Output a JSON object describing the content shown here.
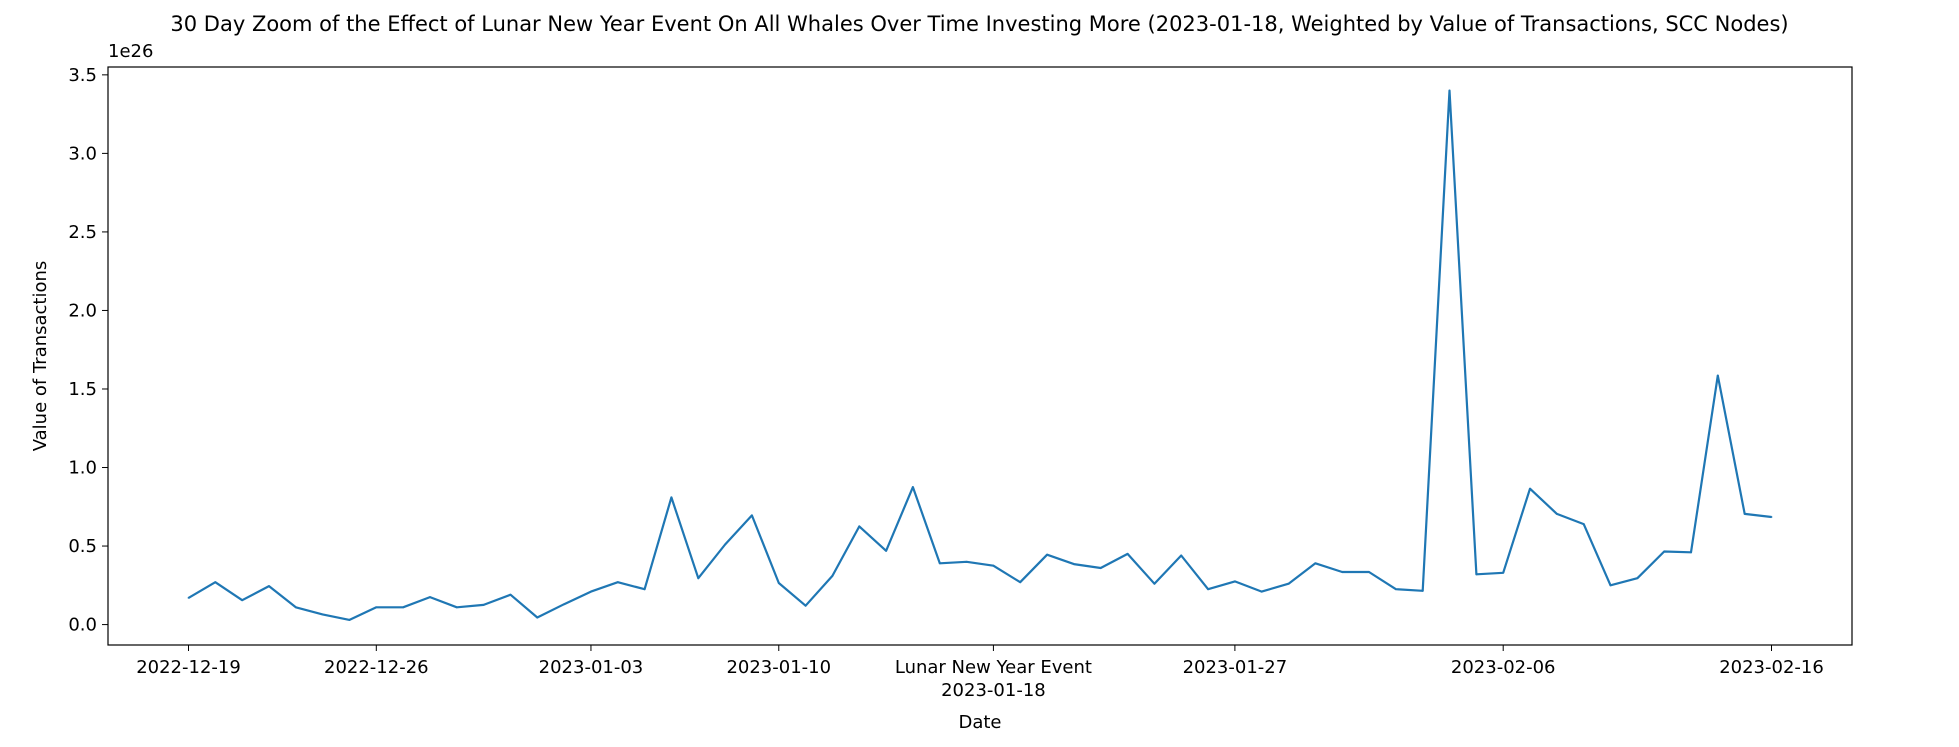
{
  "chart_data": {
    "type": "line",
    "title": "30 Day Zoom of the Effect of Lunar New Year Event On All Whales Over Time Investing More (2023-01-18, Weighted by Value of Transactions, SCC Nodes)",
    "xlabel": "Date",
    "ylabel": "Value of Transactions",
    "y_offset_label": "1e26",
    "y_multiplier": 1e+26,
    "ylim": [
      -0.13,
      3.55
    ],
    "xlim": [
      "2022-12-16",
      "2023-02-19"
    ],
    "grid": false,
    "yticks": [
      0.0,
      0.5,
      1.0,
      1.5,
      2.0,
      2.5,
      3.0,
      3.5
    ],
    "ytick_labels": [
      "0.0",
      "0.5",
      "1.0",
      "1.5",
      "2.0",
      "2.5",
      "3.0",
      "3.5"
    ],
    "xticks": [
      "2022-12-19",
      "2022-12-26",
      "2023-01-03",
      "2023-01-10",
      "2023-01-18",
      "2023-01-27",
      "2023-02-06",
      "2023-02-16"
    ],
    "xtick_labels": [
      "2022-12-19",
      "2022-12-26",
      "2023-01-03",
      "2023-01-10",
      "2023-01-18",
      "2023-01-27",
      "2023-02-06",
      "2023-02-16"
    ],
    "event_marker": {
      "date": "2023-01-18",
      "label": "Lunar New Year Event"
    },
    "series": [
      {
        "color": "#1f77b4",
        "x": [
          "2022-12-19",
          "2022-12-20",
          "2022-12-21",
          "2022-12-22",
          "2022-12-23",
          "2022-12-24",
          "2022-12-25",
          "2022-12-26",
          "2022-12-27",
          "2022-12-28",
          "2022-12-29",
          "2022-12-30",
          "2022-12-31",
          "2023-01-01",
          "2023-01-02",
          "2023-01-03",
          "2023-01-04",
          "2023-01-05",
          "2023-01-06",
          "2023-01-07",
          "2023-01-08",
          "2023-01-09",
          "2023-01-10",
          "2023-01-11",
          "2023-01-12",
          "2023-01-13",
          "2023-01-14",
          "2023-01-15",
          "2023-01-16",
          "2023-01-17",
          "2023-01-18",
          "2023-01-19",
          "2023-01-20",
          "2023-01-21",
          "2023-01-22",
          "2023-01-23",
          "2023-01-24",
          "2023-01-25",
          "2023-01-26",
          "2023-01-27",
          "2023-01-28",
          "2023-01-29",
          "2023-01-30",
          "2023-01-31",
          "2023-02-01",
          "2023-02-02",
          "2023-02-03",
          "2023-02-04",
          "2023-02-05",
          "2023-02-06",
          "2023-02-07",
          "2023-02-08",
          "2023-02-09",
          "2023-02-10",
          "2023-02-11",
          "2023-02-12",
          "2023-02-13",
          "2023-02-14",
          "2023-02-15",
          "2023-02-16"
        ],
        "values": [
          0.17,
          0.27,
          0.155,
          0.245,
          0.11,
          0.065,
          0.03,
          0.11,
          0.11,
          0.175,
          0.11,
          0.125,
          0.19,
          0.045,
          0.13,
          0.21,
          0.27,
          0.225,
          0.81,
          0.295,
          0.51,
          0.695,
          0.265,
          0.12,
          0.31,
          0.625,
          0.47,
          0.875,
          0.39,
          0.4,
          0.375,
          0.27,
          0.445,
          0.385,
          0.36,
          0.45,
          0.26,
          0.44,
          0.225,
          0.275,
          0.21,
          0.26,
          0.39,
          0.335,
          0.335,
          0.225,
          0.215,
          3.4,
          0.32,
          0.33,
          0.865,
          0.705,
          0.64,
          0.25,
          0.295,
          0.465,
          0.46,
          1.585,
          0.705,
          0.685
        ]
      }
    ]
  }
}
